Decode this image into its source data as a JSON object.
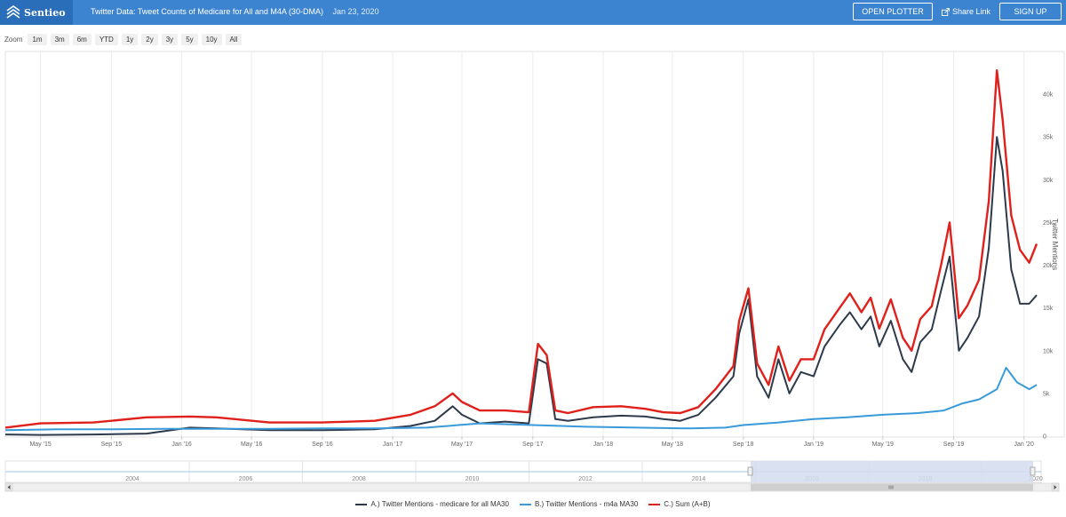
{
  "header": {
    "logo_text": "Sentieo",
    "title": "Twitter Data: Tweet Counts of Medicare for All and M4A (30-DMA)",
    "date": "Jan 23, 2020",
    "open_plotter_label": "OPEN PLOTTER",
    "share_link_label": "Share Link",
    "sign_up_label": "SIGN UP"
  },
  "zoom": {
    "label": "Zoom",
    "buttons": [
      "1m",
      "3m",
      "6m",
      "YTD",
      "1y",
      "2y",
      "3y",
      "5y",
      "10y",
      "All"
    ]
  },
  "navigator": {
    "labels": [
      "2004",
      "2006",
      "2008",
      "2010",
      "2012",
      "2014",
      "2016",
      "2018",
      "2020"
    ]
  },
  "colors": {
    "series_a": "#2d3a4b",
    "series_b": "#3a9ad9",
    "series_c": "#e0201a",
    "header_bg": "#3d84d0",
    "navigator_mask": "#d4ddf0"
  },
  "chart_data": {
    "type": "line",
    "ylabel": "Twitter Mentions",
    "ylim": [
      0,
      45000
    ],
    "yticks": [
      0,
      5000,
      10000,
      15000,
      20000,
      25000,
      30000,
      35000,
      40000
    ],
    "ytick_labels": [
      "0",
      "5k",
      "10k",
      "15k",
      "20k",
      "25k",
      "30k",
      "35k",
      "40k"
    ],
    "xlim": [
      "2015-03-01",
      "2020-01-23"
    ],
    "xticks": [
      "2015-05-01",
      "2015-09-01",
      "2016-01-01",
      "2016-05-01",
      "2016-09-01",
      "2017-01-01",
      "2017-05-01",
      "2017-09-01",
      "2018-01-01",
      "2018-05-01",
      "2018-09-01",
      "2019-01-01",
      "2019-05-01",
      "2019-09-01",
      "2020-01-01"
    ],
    "xtick_labels": [
      "May '15",
      "Sep '15",
      "Jan '16",
      "May '16",
      "Sep '16",
      "Jan '17",
      "May '17",
      "Sep '17",
      "Jan '18",
      "May '18",
      "Sep '18",
      "Jan '19",
      "May '19",
      "Sep '19",
      "Jan '20"
    ],
    "grid": "vertical",
    "legend": "bottom",
    "series": [
      {
        "name": "A.) Twitter Mentions - medicare for all MA30",
        "x": [
          "2015-03-01",
          "2015-05-01",
          "2015-08-01",
          "2015-11-01",
          "2016-01-15",
          "2016-03-01",
          "2016-06-01",
          "2016-09-01",
          "2016-12-01",
          "2017-02-01",
          "2017-03-15",
          "2017-04-15",
          "2017-05-01",
          "2017-06-01",
          "2017-07-15",
          "2017-08-25",
          "2017-09-10",
          "2017-09-25",
          "2017-10-10",
          "2017-11-01",
          "2017-12-15",
          "2018-02-01",
          "2018-03-15",
          "2018-04-15",
          "2018-05-15",
          "2018-06-15",
          "2018-07-15",
          "2018-08-15",
          "2018-08-25",
          "2018-09-10",
          "2018-09-25",
          "2018-10-15",
          "2018-11-01",
          "2018-11-20",
          "2018-12-10",
          "2019-01-01",
          "2019-01-20",
          "2019-02-15",
          "2019-03-05",
          "2019-03-25",
          "2019-04-10",
          "2019-04-25",
          "2019-05-15",
          "2019-06-05",
          "2019-06-20",
          "2019-07-05",
          "2019-07-25",
          "2019-08-10",
          "2019-08-25",
          "2019-09-10",
          "2019-09-25",
          "2019-10-15",
          "2019-11-01",
          "2019-11-15",
          "2019-11-25",
          "2019-12-10",
          "2019-12-25",
          "2020-01-10",
          "2020-01-23"
        ],
        "y": [
          200,
          150,
          200,
          300,
          1000,
          900,
          700,
          700,
          800,
          1200,
          1800,
          3500,
          2500,
          1500,
          1700,
          1500,
          9000,
          8500,
          2000,
          1800,
          2200,
          2400,
          2300,
          2000,
          1800,
          2500,
          4500,
          7000,
          12000,
          16000,
          7000,
          4500,
          9000,
          5000,
          7500,
          7000,
          10500,
          13000,
          14500,
          12500,
          14000,
          10500,
          13500,
          9000,
          7500,
          11000,
          12500,
          17000,
          21000,
          10000,
          11500,
          14000,
          22000,
          35000,
          31000,
          19500,
          15500,
          15500,
          16500
        ]
      },
      {
        "name": "B.) Twitter Mentions - m4a MA30",
        "x": [
          "2015-03-01",
          "2015-06-01",
          "2015-09-01",
          "2015-12-01",
          "2016-03-01",
          "2016-06-01",
          "2016-09-01",
          "2016-12-01",
          "2017-03-01",
          "2017-06-01",
          "2017-09-01",
          "2017-12-01",
          "2018-03-01",
          "2018-06-01",
          "2018-08-01",
          "2018-09-01",
          "2018-11-01",
          "2019-01-01",
          "2019-03-01",
          "2019-05-01",
          "2019-07-01",
          "2019-08-15",
          "2019-09-15",
          "2019-10-15",
          "2019-11-15",
          "2019-12-01",
          "2019-12-20",
          "2020-01-10",
          "2020-01-23"
        ],
        "y": [
          700,
          800,
          800,
          850,
          850,
          850,
          900,
          900,
          1000,
          1500,
          1300,
          1100,
          1000,
          900,
          1000,
          1300,
          1600,
          2000,
          2200,
          2500,
          2700,
          3000,
          3800,
          4300,
          5500,
          8000,
          6300,
          5500,
          6000
        ]
      },
      {
        "name": "C.) Sum (A+B)",
        "x": [
          "2015-03-01",
          "2015-05-01",
          "2015-08-01",
          "2015-11-01",
          "2016-01-15",
          "2016-03-01",
          "2016-06-01",
          "2016-09-01",
          "2016-12-01",
          "2017-02-01",
          "2017-03-15",
          "2017-04-15",
          "2017-05-01",
          "2017-06-01",
          "2017-07-15",
          "2017-08-25",
          "2017-09-10",
          "2017-09-25",
          "2017-10-10",
          "2017-11-01",
          "2017-12-15",
          "2018-02-01",
          "2018-03-15",
          "2018-04-15",
          "2018-05-15",
          "2018-06-15",
          "2018-07-15",
          "2018-08-15",
          "2018-08-25",
          "2018-09-10",
          "2018-09-25",
          "2018-10-15",
          "2018-11-01",
          "2018-11-20",
          "2018-12-10",
          "2019-01-01",
          "2019-01-20",
          "2019-02-15",
          "2019-03-05",
          "2019-03-25",
          "2019-04-10",
          "2019-04-25",
          "2019-05-15",
          "2019-06-05",
          "2019-06-20",
          "2019-07-05",
          "2019-07-25",
          "2019-08-10",
          "2019-08-25",
          "2019-09-10",
          "2019-09-25",
          "2019-10-15",
          "2019-11-01",
          "2019-11-15",
          "2019-11-25",
          "2019-12-10",
          "2019-12-25",
          "2020-01-10",
          "2020-01-23"
        ],
        "y": [
          1000,
          1500,
          1600,
          2200,
          2300,
          2200,
          1600,
          1600,
          1800,
          2500,
          3500,
          5000,
          4000,
          3000,
          3000,
          2800,
          10800,
          9500,
          3000,
          2700,
          3400,
          3500,
          3200,
          2800,
          2700,
          3400,
          5500,
          8200,
          13500,
          17300,
          8500,
          6000,
          10500,
          6500,
          9000,
          9000,
          12500,
          15000,
          16700,
          14500,
          16200,
          12600,
          16000,
          11500,
          10000,
          13700,
          15200,
          20000,
          25000,
          13800,
          15300,
          18300,
          27500,
          42800,
          37000,
          25800,
          21800,
          20300,
          22500
        ]
      }
    ]
  }
}
